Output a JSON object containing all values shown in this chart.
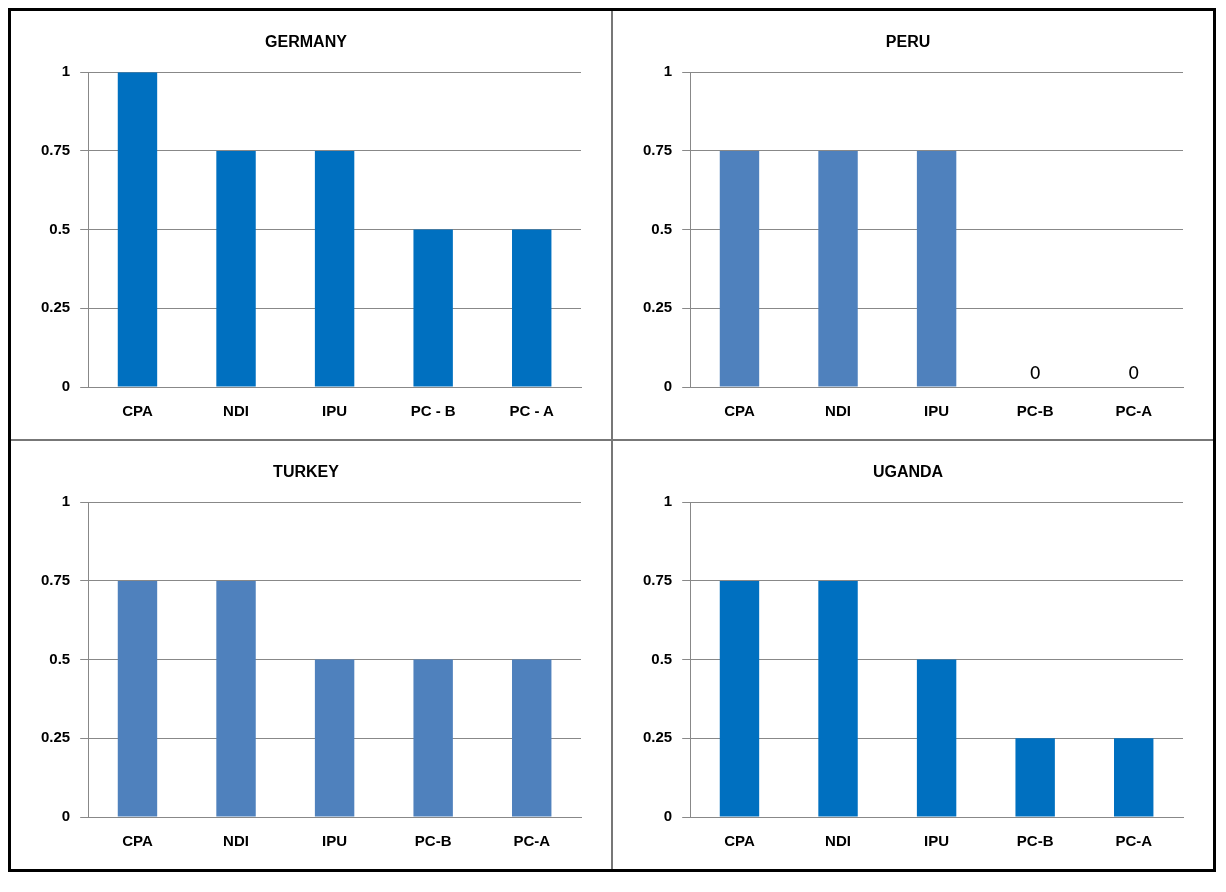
{
  "chart_data": [
    {
      "type": "bar",
      "title": "GERMANY",
      "categories": [
        "CPA",
        "NDI",
        "IPU",
        "PC - B",
        "PC - A"
      ],
      "values": [
        1,
        0.75,
        0.75,
        0.5,
        0.5
      ],
      "color": "#0070c0",
      "ylim": [
        0,
        1
      ],
      "yticks": [
        0,
        0.25,
        0.5,
        0.75,
        1
      ],
      "grid": "y"
    },
    {
      "type": "bar",
      "title": "PERU",
      "categories": [
        "CPA",
        "NDI",
        "IPU",
        "PC-B",
        "PC-A"
      ],
      "values": [
        0.75,
        0.75,
        0.75,
        0,
        0
      ],
      "value_labels": [
        null,
        null,
        null,
        "0",
        "0"
      ],
      "color": "#4f81bd",
      "ylim": [
        0,
        1
      ],
      "yticks": [
        0,
        0.25,
        0.5,
        0.75,
        1
      ],
      "grid": "y"
    },
    {
      "type": "bar",
      "title": "TURKEY",
      "categories": [
        "CPA",
        "NDI",
        "IPU",
        "PC-B",
        "PC-A"
      ],
      "values": [
        0.75,
        0.75,
        0.5,
        0.5,
        0.5
      ],
      "color": "#4f81bd",
      "ylim": [
        0,
        1
      ],
      "yticks": [
        0,
        0.25,
        0.5,
        0.75,
        1
      ],
      "grid": "y"
    },
    {
      "type": "bar",
      "title": "UGANDA",
      "categories": [
        "CPA",
        "NDI",
        "IPU",
        "PC-B",
        "PC-A"
      ],
      "values": [
        0.75,
        0.75,
        0.5,
        0.25,
        0.25
      ],
      "color": "#0070c0",
      "ylim": [
        0,
        1
      ],
      "yticks": [
        0,
        0.25,
        0.5,
        0.75,
        1
      ],
      "grid": "y"
    }
  ]
}
